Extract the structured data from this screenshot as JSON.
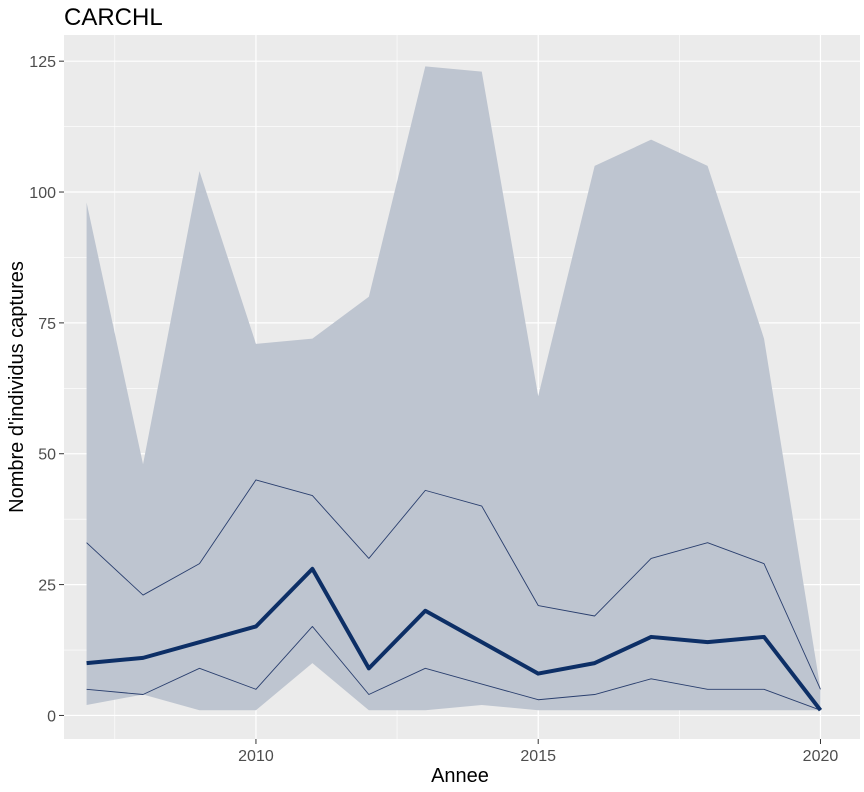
{
  "chart_data": {
    "type": "area",
    "title": "CARCHL",
    "xlabel": "Annee",
    "ylabel": "Nombre d'individus captures",
    "xlim": [
      2006.6,
      2020.7
    ],
    "ylim": [
      -4.5,
      130
    ],
    "x_ticks": [
      2010,
      2015,
      2020
    ],
    "y_ticks": [
      0,
      25,
      50,
      75,
      100,
      125
    ],
    "grid": true,
    "legend": "none",
    "x": [
      2007,
      2008,
      2009,
      2010,
      2011,
      2012,
      2013,
      2014,
      2015,
      2016,
      2017,
      2018,
      2019,
      2020
    ],
    "series": [
      {
        "role": "band",
        "lower": [
          2,
          4,
          1,
          1,
          10,
          1,
          1,
          2,
          1,
          1,
          1,
          1,
          1,
          1
        ],
        "upper": [
          98,
          48,
          104,
          71,
          72,
          80,
          124,
          123,
          61,
          105,
          110,
          105,
          72,
          5
        ],
        "color": "#bec5d0"
      },
      {
        "role": "interval",
        "values": [
          33,
          23,
          29,
          45,
          42,
          30,
          43,
          40,
          21,
          19,
          30,
          33,
          29,
          5
        ],
        "color": "#2a3f6e"
      },
      {
        "role": "interval",
        "values": [
          5,
          4,
          9,
          5,
          17,
          4,
          9,
          6,
          3,
          4,
          7,
          5,
          5,
          1
        ],
        "color": "#2a3f6e"
      },
      {
        "role": "median",
        "values": [
          10,
          11,
          14,
          17,
          28,
          9,
          20,
          14,
          8,
          10,
          15,
          14,
          15,
          1
        ],
        "color": "#0d2f66"
      }
    ],
    "colors": {
      "panel": "#ebebeb",
      "gridline": "#ffffff",
      "band": "#bec5d0",
      "interval": "#2a3f6e",
      "median": "#0d2f66"
    }
  }
}
